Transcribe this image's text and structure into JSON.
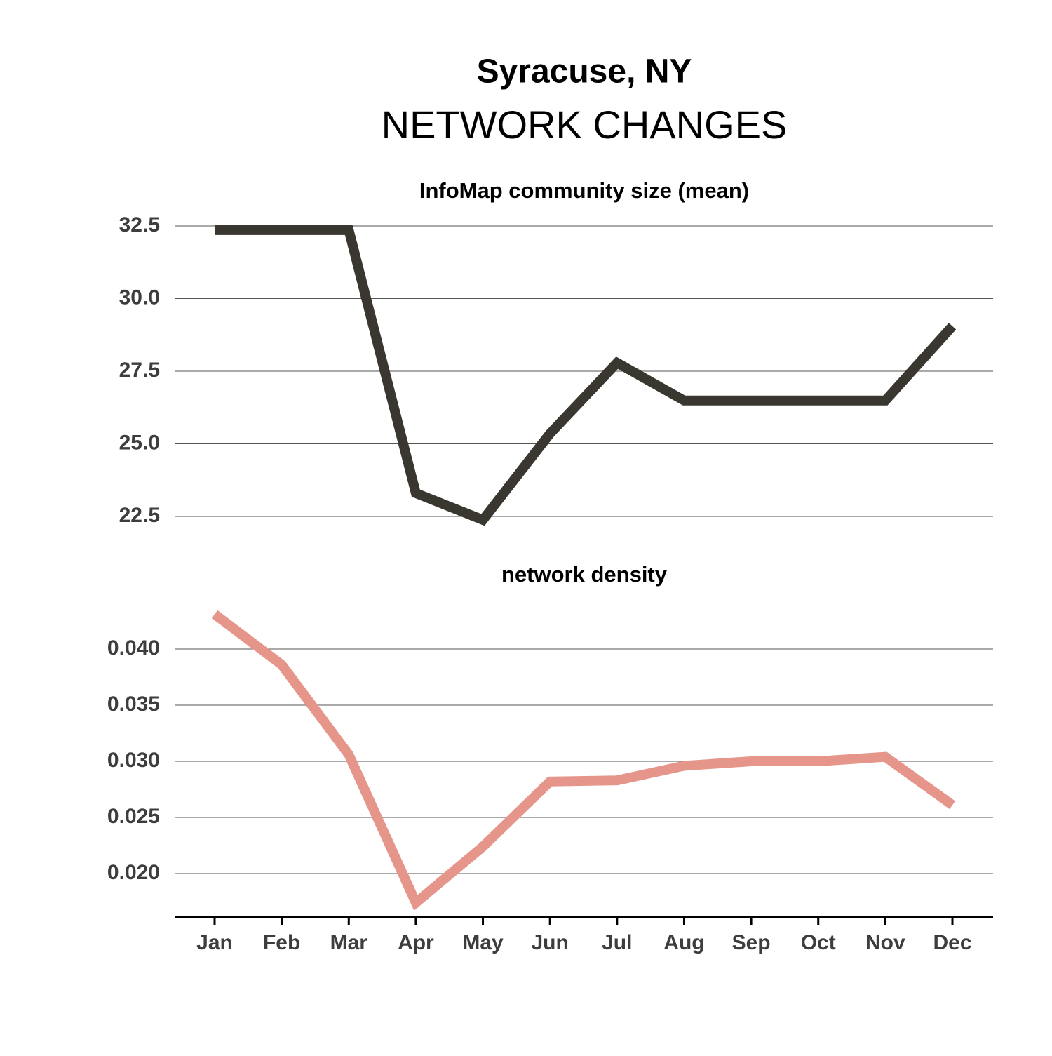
{
  "title": "Syracuse, NY",
  "subtitle": "NETWORK CHANGES",
  "chart_data": [
    {
      "type": "line",
      "title": "InfoMap community size (mean)",
      "series": [
        {
          "color": "#3a3730",
          "values": [
            32.36,
            32.36,
            32.36,
            23.3,
            22.38,
            25.35,
            27.79,
            26.49,
            26.49,
            26.49,
            26.49,
            29.05
          ]
        }
      ],
      "ylim": [
        21.9,
        32.8
      ],
      "yticks": [
        {
          "value": 22.5,
          "label": "22.5"
        },
        {
          "value": 25,
          "label": "25.0"
        },
        {
          "value": 27.5,
          "label": "27.5"
        },
        {
          "value": 30,
          "label": "30.0"
        },
        {
          "value": 32.5,
          "label": "32.5"
        }
      ],
      "grid": true
    },
    {
      "type": "line",
      "title": "network density",
      "categories": [
        "Jan",
        "Feb",
        "Mar",
        "Apr",
        "May",
        "Jun",
        "Jul",
        "Aug",
        "Sep",
        "Oct",
        "Nov",
        "Dec"
      ],
      "series": [
        {
          "color": "#e59589",
          "values": [
            0.0431,
            0.0386,
            0.0306,
            0.0174,
            0.0224,
            0.0282,
            0.0283,
            0.0296,
            0.03,
            0.03,
            0.0304,
            0.0261
          ]
        }
      ],
      "ylim": [
        0.0166,
        0.0441
      ],
      "yticks": [
        {
          "value": 0.02,
          "label": "0.020"
        },
        0.025,
        {
          "value": 0.03,
          "label": "0.030"
        },
        0.035,
        {
          "value": 0.04,
          "label": "0.040"
        }
      ],
      "grid": true
    }
  ]
}
